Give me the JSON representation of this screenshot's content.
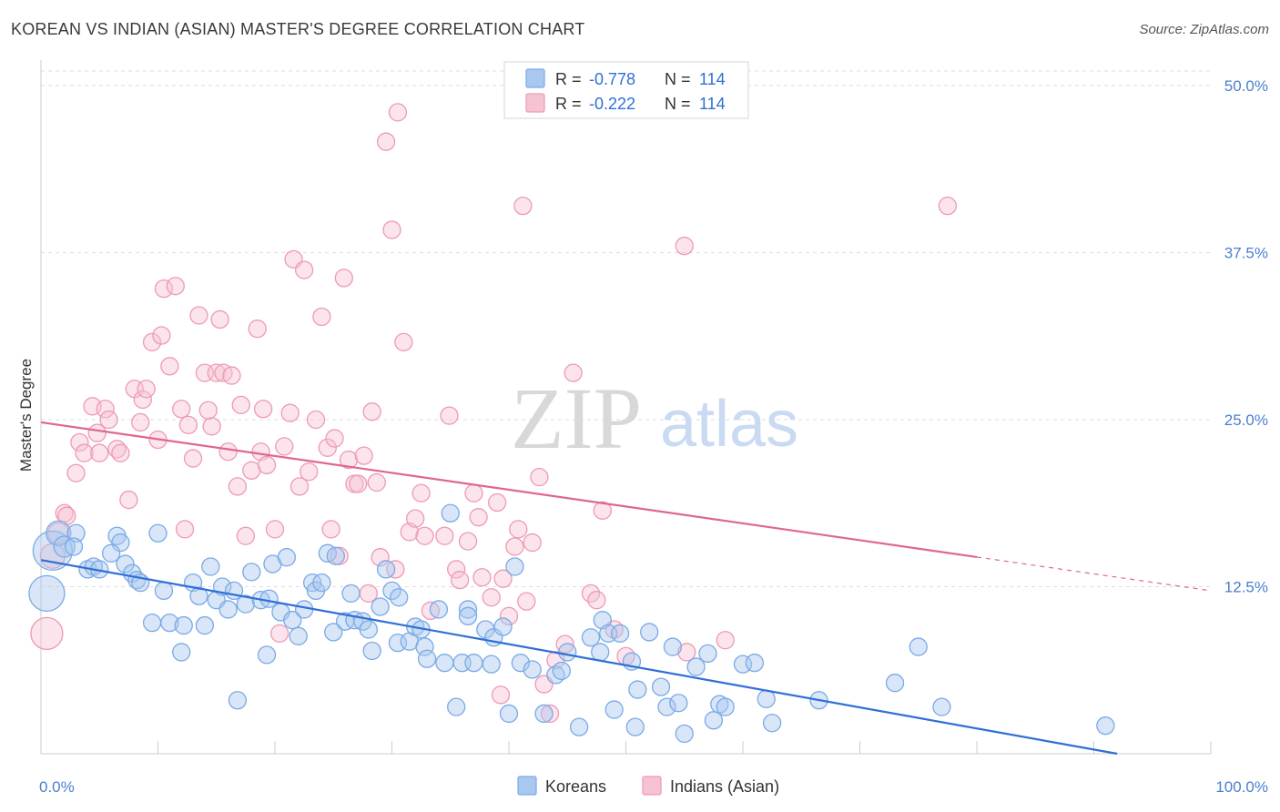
{
  "title": "KOREAN VS INDIAN (ASIAN) MASTER'S DEGREE CORRELATION CHART",
  "source": "Source: ZipAtlas.com",
  "watermark": {
    "zip": "ZIP",
    "atlas": "atlas"
  },
  "colors": {
    "koreans": "#7aaae6",
    "koreans_fill": "#a9c8f0",
    "koreans_line": "#2f6fd6",
    "indians": "#ee9ab4",
    "indians_fill": "#f6c3d3",
    "indians_line": "#e0668f",
    "tick_label": "#4a7fd0",
    "grid": "#dddddd"
  },
  "legend": {
    "rows": [
      {
        "r_label": "R =",
        "r_value": "-0.778",
        "n_label": "N =",
        "n_value": "114"
      },
      {
        "r_label": "R =",
        "r_value": "-0.222",
        "n_label": "N =",
        "n_value": "114"
      }
    ]
  },
  "chart_data": {
    "type": "scatter",
    "ylabel": "Master's Degree",
    "x_tick_labels": [
      "0.0%",
      "100.0%"
    ],
    "y_tick_labels": [
      "12.5%",
      "25.0%",
      "37.5%",
      "50.0%"
    ],
    "y_ticks": [
      12.5,
      25.0,
      37.5,
      50.0
    ],
    "xlim": [
      0,
      100
    ],
    "ylim": [
      0,
      51.5
    ],
    "grid": true,
    "legend_position": "top-center",
    "series": [
      {
        "name": "Koreans",
        "trend": {
          "x0": 0,
          "y0": 14.5,
          "x1": 92,
          "y1": 0,
          "dash_after": null
        },
        "points": [
          [
            1,
            15.2,
            20
          ],
          [
            0.5,
            12,
            18
          ],
          [
            1.5,
            16.5,
            12
          ],
          [
            2,
            15.5,
            10
          ],
          [
            3,
            16.5,
            8
          ],
          [
            2.8,
            15.5,
            8
          ],
          [
            4,
            13.8,
            8
          ],
          [
            4.5,
            14,
            8
          ],
          [
            5,
            13.8,
            8
          ],
          [
            6.5,
            16.3,
            8
          ],
          [
            6.8,
            15.8,
            8
          ],
          [
            6,
            15,
            8
          ],
          [
            7.2,
            14.2,
            8
          ],
          [
            7.8,
            13.5,
            8
          ],
          [
            8.2,
            13,
            8
          ],
          [
            8.5,
            12.8,
            8
          ],
          [
            9.5,
            9.8,
            8
          ],
          [
            10,
            16.5,
            8
          ],
          [
            10.5,
            12.2,
            8
          ],
          [
            11,
            9.8,
            8
          ],
          [
            12,
            7.6,
            8
          ],
          [
            12.2,
            9.6,
            8
          ],
          [
            13,
            12.8,
            8
          ],
          [
            13.5,
            11.8,
            8
          ],
          [
            14,
            9.6,
            8
          ],
          [
            14.5,
            14,
            8
          ],
          [
            15,
            11.5,
            8
          ],
          [
            15.5,
            12.5,
            8
          ],
          [
            16,
            10.8,
            8
          ],
          [
            16.5,
            12.2,
            8
          ],
          [
            16.8,
            4,
            8
          ],
          [
            17.5,
            11.2,
            8
          ],
          [
            18,
            13.6,
            8
          ],
          [
            18.8,
            11.5,
            8
          ],
          [
            19.5,
            11.6,
            8
          ],
          [
            19.3,
            7.4,
            8
          ],
          [
            19.8,
            14.2,
            8
          ],
          [
            20.5,
            10.6,
            8
          ],
          [
            21,
            14.7,
            8
          ],
          [
            21.5,
            10,
            8
          ],
          [
            22,
            8.8,
            8
          ],
          [
            22.5,
            10.8,
            8
          ],
          [
            23.2,
            12.8,
            8
          ],
          [
            23.5,
            12.2,
            8
          ],
          [
            24,
            12.8,
            8
          ],
          [
            24.5,
            15,
            8
          ],
          [
            25,
            9.1,
            8
          ],
          [
            25.2,
            14.8,
            8
          ],
          [
            26,
            9.9,
            8
          ],
          [
            26.5,
            12,
            8
          ],
          [
            26.8,
            10,
            8
          ],
          [
            27.5,
            9.9,
            8
          ],
          [
            28,
            9.3,
            8
          ],
          [
            28.3,
            7.7,
            8
          ],
          [
            29,
            11,
            8
          ],
          [
            29.5,
            13.8,
            8
          ],
          [
            30,
            12.2,
            8
          ],
          [
            30.6,
            11.7,
            8
          ],
          [
            30.5,
            8.3,
            8
          ],
          [
            31.5,
            8.4,
            8
          ],
          [
            32,
            9.5,
            8
          ],
          [
            32.5,
            9.3,
            8
          ],
          [
            32.8,
            8,
            8
          ],
          [
            33,
            7.1,
            8
          ],
          [
            34,
            10.8,
            8
          ],
          [
            34.5,
            6.8,
            8
          ],
          [
            35,
            18,
            8
          ],
          [
            35.5,
            3.5,
            8
          ],
          [
            36,
            6.8,
            8
          ],
          [
            36.5,
            10.8,
            8
          ],
          [
            37,
            6.8,
            8
          ],
          [
            38,
            9.3,
            8
          ],
          [
            38.5,
            6.7,
            8
          ],
          [
            38.7,
            8.7,
            8
          ],
          [
            39.5,
            9.5,
            8
          ],
          [
            40,
            3,
            8
          ],
          [
            40.5,
            14,
            8
          ],
          [
            41,
            6.8,
            8
          ],
          [
            42,
            6.3,
            8
          ],
          [
            43,
            3,
            8
          ],
          [
            44,
            5.9,
            8
          ],
          [
            45,
            7.6,
            8
          ],
          [
            46,
            2,
            8
          ],
          [
            47,
            8.7,
            8
          ],
          [
            48,
            10,
            8
          ],
          [
            48.5,
            9,
            8
          ],
          [
            49,
            3.3,
            8
          ],
          [
            49.5,
            9,
            8
          ],
          [
            50.5,
            6.9,
            8
          ],
          [
            51,
            4.8,
            8
          ],
          [
            52,
            9.1,
            8
          ],
          [
            53,
            5,
            8
          ],
          [
            53.5,
            3.5,
            8
          ],
          [
            54,
            8,
            8
          ],
          [
            54.5,
            3.8,
            8
          ],
          [
            55,
            1.5,
            8
          ],
          [
            56,
            6.5,
            8
          ],
          [
            57,
            7.5,
            8
          ],
          [
            57.5,
            2.5,
            8
          ],
          [
            58,
            3.7,
            8
          ],
          [
            58.5,
            3.5,
            8
          ],
          [
            60,
            6.7,
            8
          ],
          [
            61,
            6.8,
            8
          ],
          [
            62,
            4.1,
            8
          ],
          [
            62.5,
            2.3,
            8
          ],
          [
            66.5,
            4,
            8
          ],
          [
            73,
            5.3,
            8
          ],
          [
            75,
            8,
            8
          ],
          [
            77,
            3.5,
            8
          ],
          [
            91,
            2.1,
            8
          ],
          [
            36.5,
            10.3,
            8
          ],
          [
            44.5,
            6.2,
            8
          ],
          [
            47.8,
            7.6,
            8
          ],
          [
            50.8,
            2,
            8
          ]
        ]
      },
      {
        "name": "Indians (Asian)",
        "trend": {
          "x0": 0,
          "y0": 24.8,
          "x1": 100,
          "y1": 12.2,
          "dash_after": 80
        },
        "points": [
          [
            0.5,
            9,
            16
          ],
          [
            1,
            14.8,
            12
          ],
          [
            1.5,
            16.5,
            10
          ],
          [
            2,
            18,
            8
          ],
          [
            2.2,
            17.8,
            8
          ],
          [
            3,
            21,
            8
          ],
          [
            3.3,
            23.3,
            8
          ],
          [
            3.7,
            22.5,
            8
          ],
          [
            4.4,
            26,
            8
          ],
          [
            4.8,
            24,
            8
          ],
          [
            5,
            22.5,
            8
          ],
          [
            5.5,
            25.8,
            8
          ],
          [
            5.8,
            25,
            8
          ],
          [
            6.5,
            22.8,
            8
          ],
          [
            6.8,
            22.5,
            8
          ],
          [
            7.5,
            19,
            8
          ],
          [
            8,
            27.3,
            8
          ],
          [
            8.5,
            24.8,
            8
          ],
          [
            8.7,
            26.5,
            8
          ],
          [
            9,
            27.3,
            8
          ],
          [
            9.5,
            30.8,
            8
          ],
          [
            10,
            23.5,
            8
          ],
          [
            10.3,
            31.3,
            8
          ],
          [
            10.5,
            34.8,
            8
          ],
          [
            11,
            29,
            8
          ],
          [
            11.5,
            35,
            8
          ],
          [
            12,
            25.8,
            8
          ],
          [
            12.3,
            16.8,
            8
          ],
          [
            12.6,
            24.6,
            8
          ],
          [
            13,
            22.1,
            8
          ],
          [
            13.5,
            32.8,
            8
          ],
          [
            14,
            28.5,
            8
          ],
          [
            14.3,
            25.7,
            8
          ],
          [
            14.6,
            24.5,
            8
          ],
          [
            15,
            28.5,
            8
          ],
          [
            15.3,
            32.5,
            8
          ],
          [
            15.6,
            28.5,
            8
          ],
          [
            16,
            22.6,
            8
          ],
          [
            16.3,
            28.3,
            8
          ],
          [
            16.8,
            20,
            8
          ],
          [
            17.1,
            26.1,
            8
          ],
          [
            17.5,
            16.3,
            8
          ],
          [
            18,
            21.2,
            8
          ],
          [
            18.5,
            31.8,
            8
          ],
          [
            18.8,
            22.6,
            8
          ],
          [
            19,
            25.8,
            8
          ],
          [
            19.3,
            21.6,
            8
          ],
          [
            20,
            16.8,
            8
          ],
          [
            20.4,
            9,
            8
          ],
          [
            20.8,
            23,
            8
          ],
          [
            21.3,
            25.5,
            8
          ],
          [
            21.6,
            37,
            8
          ],
          [
            22.1,
            20,
            8
          ],
          [
            22.5,
            36.2,
            8
          ],
          [
            22.9,
            21.1,
            8
          ],
          [
            23.5,
            25,
            8
          ],
          [
            24,
            32.7,
            8
          ],
          [
            24.5,
            22.9,
            8
          ],
          [
            24.8,
            16.8,
            8
          ],
          [
            25.1,
            23.6,
            8
          ],
          [
            25.5,
            14.8,
            8
          ],
          [
            25.9,
            35.6,
            8
          ],
          [
            26.3,
            22,
            8
          ],
          [
            26.8,
            20.2,
            8
          ],
          [
            27.1,
            20.2,
            8
          ],
          [
            27.6,
            22.3,
            8
          ],
          [
            28,
            12,
            8
          ],
          [
            28.3,
            25.6,
            8
          ],
          [
            28.7,
            20.3,
            8
          ],
          [
            29,
            14.7,
            8
          ],
          [
            29.5,
            45.8,
            8
          ],
          [
            30,
            39.2,
            8
          ],
          [
            30.3,
            13.8,
            8
          ],
          [
            30.5,
            48,
            8
          ],
          [
            31,
            30.8,
            8
          ],
          [
            31.5,
            16.6,
            8
          ],
          [
            32,
            17.6,
            8
          ],
          [
            32.5,
            19.5,
            8
          ],
          [
            32.8,
            16.3,
            8
          ],
          [
            33.3,
            10.7,
            8
          ],
          [
            34.5,
            16.3,
            8
          ],
          [
            34.9,
            25.3,
            8
          ],
          [
            35.5,
            13.8,
            8
          ],
          [
            36.5,
            15.9,
            8
          ],
          [
            37,
            19.5,
            8
          ],
          [
            37.4,
            17.7,
            8
          ],
          [
            37.7,
            13.2,
            8
          ],
          [
            38.5,
            11.7,
            8
          ],
          [
            39,
            18.8,
            8
          ],
          [
            39.5,
            13.1,
            8
          ],
          [
            40,
            10.3,
            8
          ],
          [
            40.5,
            15.5,
            8
          ],
          [
            40.8,
            16.8,
            8
          ],
          [
            41.2,
            41,
            8
          ],
          [
            41.5,
            11.4,
            8
          ],
          [
            42,
            15.8,
            8
          ],
          [
            42.6,
            20.7,
            8
          ],
          [
            43,
            5.2,
            8
          ],
          [
            43.5,
            3,
            8
          ],
          [
            44,
            7,
            8
          ],
          [
            44.8,
            8.2,
            8
          ],
          [
            45.5,
            28.5,
            8
          ],
          [
            47,
            12,
            8
          ],
          [
            47.5,
            11.5,
            8
          ],
          [
            48,
            18.2,
            8
          ],
          [
            49,
            9.3,
            8
          ],
          [
            50,
            7.3,
            8
          ],
          [
            55,
            38,
            8
          ],
          [
            55.2,
            7.6,
            8
          ],
          [
            58.5,
            8.5,
            8
          ],
          [
            77.5,
            41,
            8
          ],
          [
            39.3,
            4.4,
            8
          ],
          [
            35.8,
            13,
            8
          ]
        ]
      }
    ]
  },
  "bottom_legend": [
    "Koreans",
    "Indians (Asian)"
  ]
}
